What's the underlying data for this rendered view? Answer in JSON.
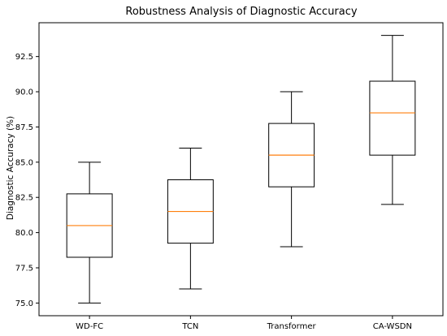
{
  "chart_data": {
    "type": "box",
    "title": "Robustness Analysis of Diagnostic Accuracy",
    "xlabel": "",
    "ylabel": "Diagnostic Accuracy (%)",
    "ylim": [
      74.1,
      94.9
    ],
    "yticks": [
      75.0,
      77.5,
      80.0,
      82.5,
      85.0,
      87.5,
      90.0,
      92.5
    ],
    "ytick_labels": [
      "75.0",
      "77.5",
      "80.0",
      "82.5",
      "85.0",
      "87.5",
      "90.0",
      "92.5"
    ],
    "categories": [
      "WD-FC",
      "TCN",
      "Transformer",
      "CA-WSDN"
    ],
    "boxes": [
      {
        "label": "WD-FC",
        "whislo": 75.0,
        "q1": 78.25,
        "med": 80.5,
        "q3": 82.75,
        "whishi": 85.0
      },
      {
        "label": "TCN",
        "whislo": 76.0,
        "q1": 79.25,
        "med": 81.5,
        "q3": 83.75,
        "whishi": 86.0
      },
      {
        "label": "Transformer",
        "whislo": 79.0,
        "q1": 83.25,
        "med": 85.5,
        "q3": 87.75,
        "whishi": 90.0
      },
      {
        "label": "CA-WSDN",
        "whislo": 82.0,
        "q1": 85.5,
        "med": 88.5,
        "q3": 90.75,
        "whishi": 94.0
      }
    ],
    "colors": {
      "box": "#000000",
      "median": "#ff7f0e",
      "axis": "#000000"
    },
    "grid": false
  }
}
